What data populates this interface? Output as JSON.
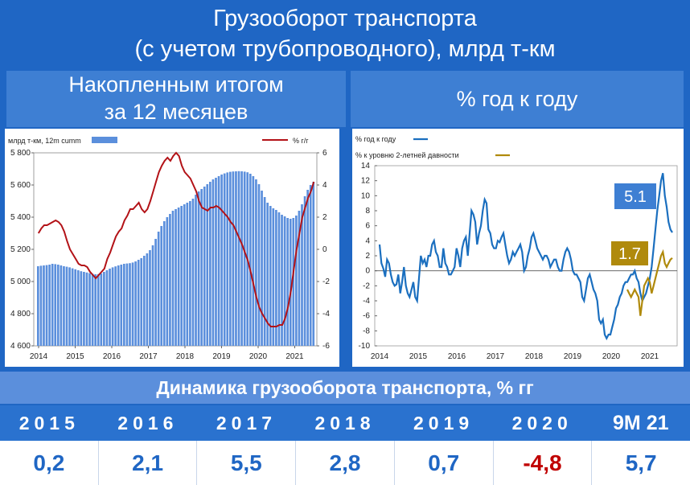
{
  "title_line1": "Грузооборот транспорта",
  "title_line2": "(с учетом трубопроводного), млрд т-км",
  "left_subtitle_line1": "Накопленным итогом",
  "left_subtitle_line2": "за 12 месяцев",
  "right_subtitle": "% год к году",
  "table": {
    "header": "Динамика грузооборота транспорта, % гг",
    "years": [
      "2015",
      "2016",
      "2017",
      "2018",
      "2019",
      "2020",
      "9М 21"
    ],
    "values": [
      "0,2",
      "2,1",
      "5,5",
      "2,8",
      "0,7",
      "-4,8",
      "5,7"
    ]
  },
  "colors": {
    "bar": "#5b8fdc",
    "red_line": "#b31217",
    "blue_line": "#1b6fbf",
    "gold_line": "#b08a0c",
    "neg_value": "#c00000"
  },
  "chart_data": [
    {
      "type": "bar",
      "legend_left": "млрд т-км, 12m cumm",
      "legend_right": "% г/г",
      "x_ticks": [
        "2014",
        "2015",
        "2016",
        "2017",
        "2018",
        "2019",
        "2020",
        "2021"
      ],
      "y_left_ticks": [
        "5 800",
        "5 600",
        "5 400",
        "5 200",
        "5 000",
        "4 800",
        "4 600"
      ],
      "y_right_ticks": [
        "6",
        "4",
        "2",
        "0",
        "-2",
        "-4",
        "-6"
      ],
      "ylim_left": [
        4600,
        5800
      ],
      "ylim_right": [
        -6,
        6
      ],
      "series": [
        {
          "name": "млрд т-км, 12m cumm",
          "axis": "left",
          "values": [
            5095,
            5098,
            5100,
            5102,
            5105,
            5110,
            5108,
            5105,
            5100,
            5095,
            5092,
            5088,
            5082,
            5076,
            5070,
            5064,
            5060,
            5056,
            5052,
            5048,
            5045,
            5046,
            5050,
            5060,
            5070,
            5080,
            5088,
            5094,
            5100,
            5105,
            5110,
            5112,
            5114,
            5118,
            5125,
            5135,
            5145,
            5160,
            5175,
            5195,
            5225,
            5265,
            5310,
            5345,
            5375,
            5400,
            5420,
            5440,
            5450,
            5460,
            5470,
            5480,
            5490,
            5500,
            5515,
            5540,
            5560,
            5575,
            5590,
            5605,
            5620,
            5635,
            5645,
            5655,
            5665,
            5672,
            5678,
            5682,
            5684,
            5685,
            5686,
            5685,
            5683,
            5679,
            5670,
            5655,
            5635,
            5605,
            5565,
            5525,
            5490,
            5470,
            5455,
            5445,
            5430,
            5415,
            5405,
            5395,
            5390,
            5395,
            5410,
            5440,
            5480,
            5530,
            5570,
            5600,
            5620
          ]
        },
        {
          "name": "% г/г",
          "axis": "right",
          "values": [
            1.0,
            1.3,
            1.5,
            1.5,
            1.6,
            1.7,
            1.8,
            1.7,
            1.5,
            1.1,
            0.5,
            0.0,
            -0.3,
            -0.6,
            -0.9,
            -1.0,
            -1.0,
            -1.1,
            -1.4,
            -1.6,
            -1.8,
            -1.6,
            -1.4,
            -1.2,
            -0.6,
            -0.2,
            0.3,
            0.8,
            1.1,
            1.3,
            1.8,
            2.1,
            2.5,
            2.5,
            2.7,
            2.9,
            2.5,
            2.3,
            2.5,
            3.0,
            3.6,
            4.2,
            4.8,
            5.2,
            5.5,
            5.7,
            5.5,
            5.8,
            6.0,
            5.8,
            5.2,
            4.8,
            4.6,
            4.4,
            4.0,
            3.6,
            3.0,
            2.6,
            2.5,
            2.4,
            2.6,
            2.6,
            2.7,
            2.6,
            2.4,
            2.2,
            2.0,
            1.7,
            1.5,
            1.1,
            0.7,
            0.3,
            -0.2,
            -0.7,
            -1.4,
            -2.2,
            -3.0,
            -3.6,
            -4.0,
            -4.3,
            -4.6,
            -4.8,
            -4.8,
            -4.8,
            -4.7,
            -4.7,
            -4.3,
            -3.6,
            -2.6,
            -1.3,
            0.0,
            1.0,
            2.0,
            2.6,
            3.2,
            3.6,
            4.2
          ]
        }
      ]
    },
    {
      "type": "line",
      "x_ticks": [
        "2014",
        "2015",
        "2016",
        "2017",
        "2018",
        "2019",
        "2020",
        "2021"
      ],
      "y_ticks": [
        "14",
        "12",
        "10",
        "8",
        "6",
        "4",
        "2",
        "0",
        "-2",
        "-4",
        "-6",
        "-8",
        "-10"
      ],
      "ylim": [
        -10,
        14
      ],
      "series": [
        {
          "name": "% год к году",
          "values": [
            3.5,
            1.0,
            0.3,
            -0.8,
            1.5,
            1.0,
            -0.5,
            -1.5,
            -2.0,
            -1.8,
            -0.5,
            -3.0,
            -1.5,
            0.5,
            -2.0,
            -3.0,
            -3.5,
            -2.5,
            -1.5,
            -3.5,
            -4.0,
            -1.0,
            2.0,
            1.0,
            1.5,
            0.5,
            2.0,
            2.0,
            3.5,
            4.0,
            2.5,
            2.0,
            0.5,
            0.5,
            3.0,
            1.0,
            0.5,
            -0.5,
            -0.5,
            0.0,
            0.5,
            3.0,
            2.0,
            0.5,
            3.0,
            4.0,
            4.5,
            2.0,
            5.0,
            8.0,
            7.5,
            6.5,
            3.5,
            5.0,
            6.0,
            8.0,
            9.5,
            9.0,
            5.5,
            5.0,
            3.5,
            3.0,
            3.0,
            4.0,
            3.8,
            4.5,
            5.0,
            3.5,
            2.0,
            1.0,
            1.5,
            2.5,
            2.0,
            2.5,
            3.0,
            3.5,
            2.5,
            0.0,
            0.5,
            2.0,
            3.0,
            4.5,
            5.0,
            4.0,
            3.0,
            2.5,
            2.0,
            1.5,
            2.0,
            2.0,
            1.5,
            0.5,
            1.0,
            1.5,
            1.5,
            0.5,
            0.0,
            0.0,
            1.5,
            2.5,
            3.0,
            2.5,
            1.5,
            0.0,
            -0.5,
            -0.5,
            -1.0,
            -1.5,
            -3.5,
            -4.0,
            -2.5,
            -1.0,
            -0.5,
            -1.5,
            -2.5,
            -3.0,
            -4.0,
            -6.5,
            -7.0,
            -6.5,
            -8.5,
            -9.0,
            -8.5,
            -8.5,
            -7.5,
            -6.5,
            -5.0,
            -4.5,
            -3.5,
            -3.0,
            -2.0,
            -1.5,
            -1.5,
            -1.0,
            -0.5,
            -0.5,
            0.0,
            -1.0,
            -1.5,
            -3.0,
            -4.0,
            -3.5,
            -3.0,
            -2.0,
            -1.0,
            0.5,
            3.0,
            5.5,
            8.0,
            10.0,
            12.0,
            13.0,
            10.0,
            8.5,
            6.5,
            5.5,
            5.1
          ]
        },
        {
          "name": "% к уровню 2-летней давности",
          "values": [
            -2.5,
            -3.0,
            -3.5,
            -3.0,
            -2.5,
            -3.0,
            -3.5,
            -6.0,
            -4.0,
            -2.0,
            -1.5,
            -1.0,
            -1.5,
            -3.0,
            -2.0,
            -1.0,
            0.0,
            1.0,
            2.0,
            2.5,
            1.0,
            0.5,
            1.0,
            1.5,
            1.7
          ]
        }
      ],
      "callouts": [
        "5.1",
        "1.7"
      ]
    }
  ]
}
